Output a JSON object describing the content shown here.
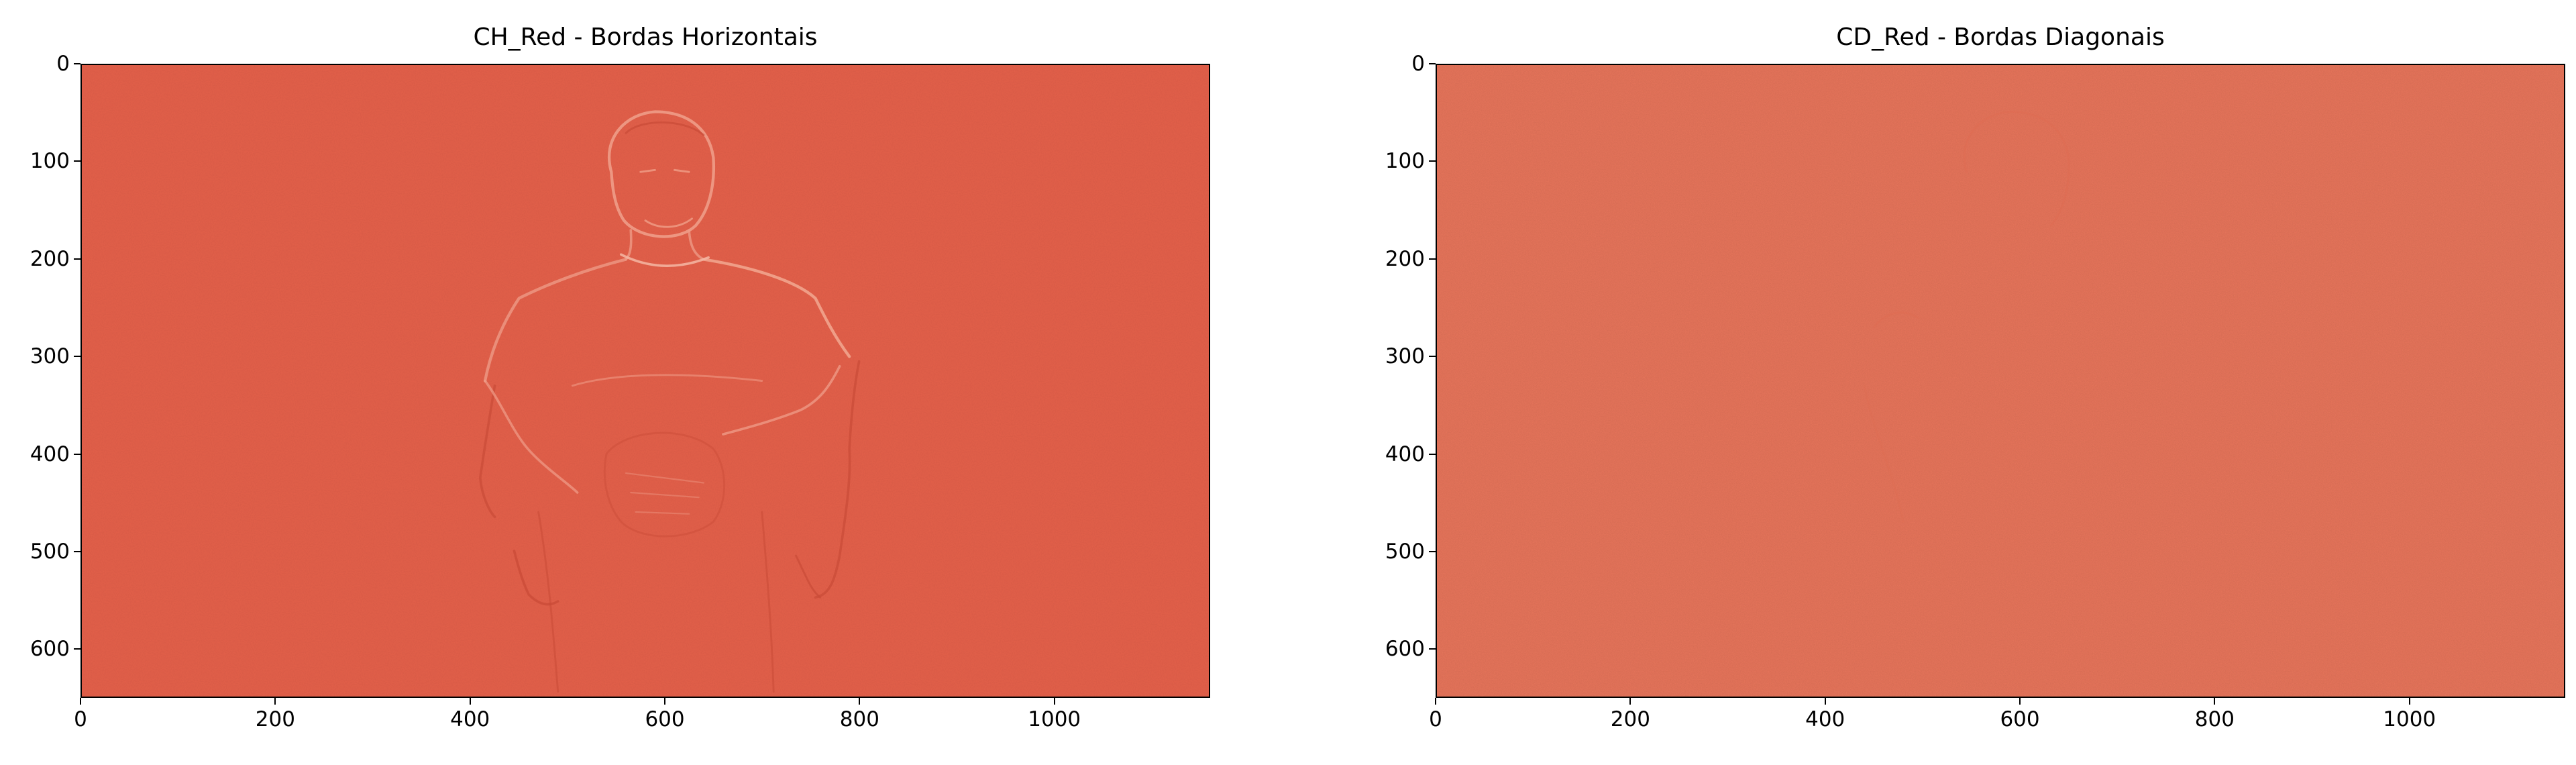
{
  "figure": {
    "panels": [
      {
        "title": "CH_Red - Bordas Horizontais",
        "image_description_color": "#e4604a",
        "y_ticks": [
          "0",
          "100",
          "200",
          "300",
          "400",
          "500",
          "600"
        ],
        "x_ticks": [
          "0",
          "200",
          "400",
          "600",
          "800",
          "1000"
        ]
      },
      {
        "title": "CD_Red - Bordas Diagonais",
        "image_description_color": "#e8755b",
        "y_ticks": [
          "0",
          "100",
          "200",
          "300",
          "400",
          "500",
          "600"
        ],
        "x_ticks": [
          "0",
          "200",
          "400",
          "600",
          "800",
          "1000"
        ]
      }
    ]
  },
  "chart_data": [
    {
      "type": "heatmap",
      "title": "CH_Red - Bordas Horizontais",
      "xlim": [
        0,
        1160
      ],
      "ylim": [
        650,
        0
      ],
      "x_tick_values": [
        0,
        200,
        400,
        600,
        800,
        1000
      ],
      "y_tick_values": [
        0,
        100,
        200,
        300,
        400,
        500,
        600
      ],
      "colors": {
        "fill": "#e4604a",
        "edge_light": "#f1a08f",
        "edge_dark": "#c94b37"
      }
    },
    {
      "type": "heatmap",
      "title": "CD_Red - Bordas Diagonais",
      "xlim": [
        0,
        1160
      ],
      "ylim": [
        650,
        0
      ],
      "x_tick_values": [
        0,
        200,
        400,
        600,
        800,
        1000
      ],
      "y_tick_values": [
        0,
        100,
        200,
        300,
        400,
        500,
        600
      ],
      "colors": {
        "fill": "#e8755b",
        "edge_light": "#ec8a72",
        "edge_dark": "#e06a50"
      }
    }
  ]
}
